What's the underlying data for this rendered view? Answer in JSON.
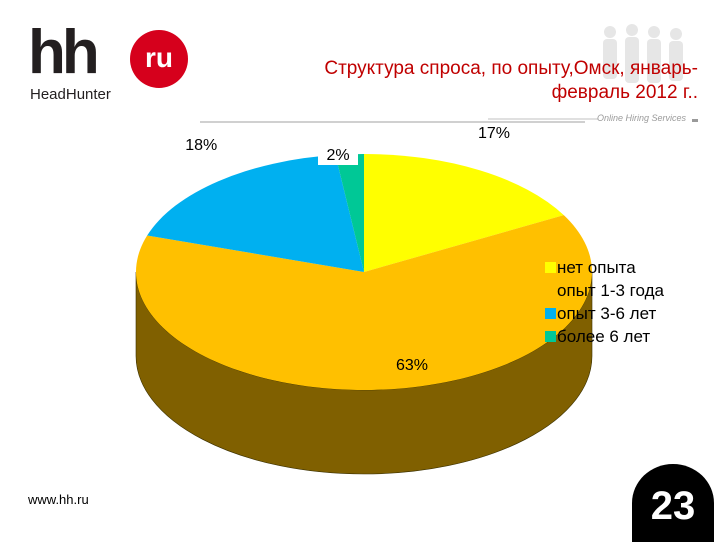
{
  "logo": {
    "text": "hh",
    "badge": "ru",
    "subtitle": "HeadHunter"
  },
  "header": {
    "title": "Структура спроса, по опыту,Омск, январь-февраль 2012 г..",
    "tagline": "Online Hiring Services"
  },
  "chart_data": {
    "type": "pie",
    "categories": [
      "нет опыта",
      "опыт 1-3 года",
      "опыт 3-6 лет",
      "более 6 лет"
    ],
    "values": [
      17,
      63,
      18,
      2
    ],
    "labels": [
      "17%",
      "63%",
      "18%",
      "2%"
    ],
    "colors": [
      "#ffff00",
      "#ffc000",
      "#00b0f0",
      "#00c896"
    ],
    "legend": "right"
  },
  "footer": {
    "url": "www.hh.ru",
    "page": "23"
  }
}
